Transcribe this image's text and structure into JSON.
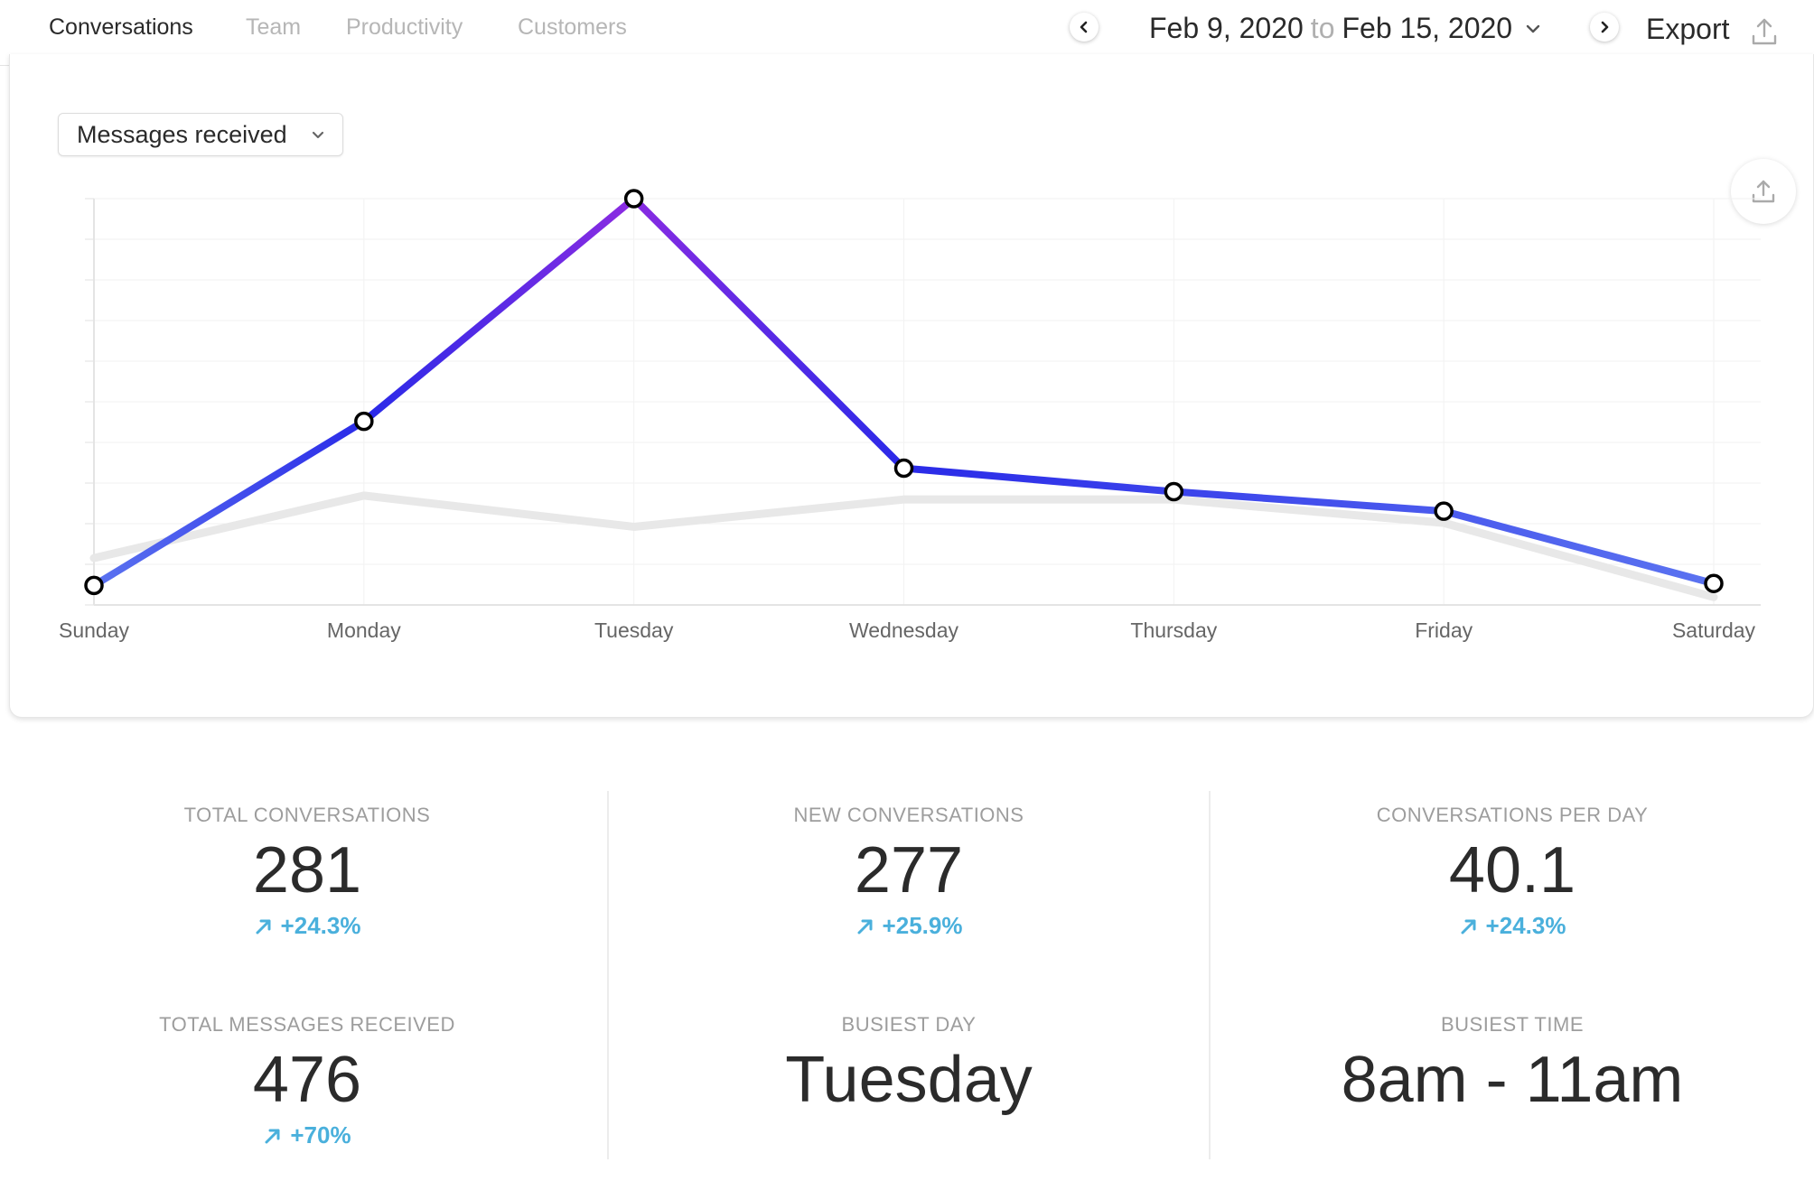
{
  "tabs": [
    {
      "label": "Conversations",
      "active": true
    },
    {
      "label": "Team",
      "active": false
    },
    {
      "label": "Productivity",
      "active": false
    },
    {
      "label": "Customers",
      "active": false
    }
  ],
  "date_range": {
    "start": "Feb 9, 2020",
    "separator": "to",
    "end": "Feb 15, 2020"
  },
  "export_label": "Export",
  "metric_select": {
    "value": "Messages received"
  },
  "icons": {
    "prev": "chevron-left-icon",
    "next": "chevron-right-icon",
    "dropdown": "chevron-down-icon",
    "export": "upload-icon"
  },
  "colors": {
    "line_start": "#5b73f0",
    "line_mid": "#2a2ae8",
    "line_peak": "#8a2be2",
    "previous_period": "#e8e8e8",
    "trend_up": "#4ab0dc"
  },
  "chart_data": {
    "type": "line",
    "categories": [
      "Sunday",
      "Monday",
      "Tuesday",
      "Wednesday",
      "Thursday",
      "Friday",
      "Saturday"
    ],
    "series": [
      {
        "values": [
          0.5,
          4.7,
          10.4,
          3.5,
          2.9,
          2.4,
          0.55
        ]
      },
      {
        "values": [
          1.2,
          2.8,
          2.0,
          2.7,
          2.7,
          2.1,
          0.2
        ]
      }
    ],
    "ylim": [
      0,
      10.4
    ],
    "grid": true,
    "y_tick_labels": false,
    "legend": "none"
  },
  "stats": [
    {
      "label": "TOTAL CONVERSATIONS",
      "value": "281",
      "change": "+24.3%"
    },
    {
      "label": "NEW CONVERSATIONS",
      "value": "277",
      "change": "+25.9%"
    },
    {
      "label": "CONVERSATIONS PER DAY",
      "value": "40.1",
      "change": "+24.3%"
    },
    {
      "label": "TOTAL MESSAGES RECEIVED",
      "value": "476",
      "change": "+70%"
    },
    {
      "label": "BUSIEST DAY",
      "value": "Tuesday"
    },
    {
      "label": "BUSIEST TIME",
      "value": "8am - 11am"
    }
  ]
}
